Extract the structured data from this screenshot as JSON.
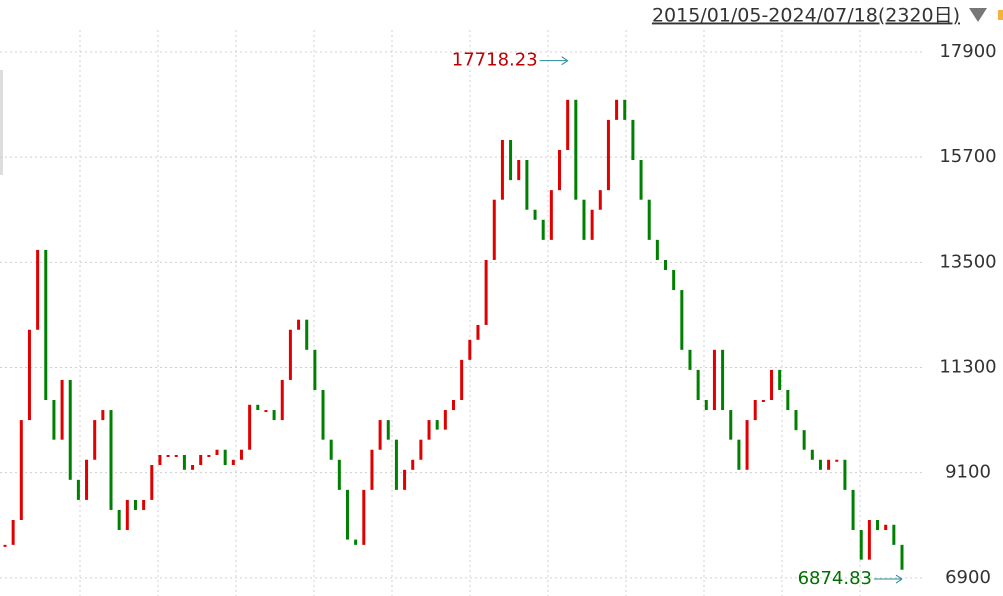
{
  "chart_data": {
    "type": "candles",
    "header": "2015/01/05-2024/07/18(2320日)",
    "values": [
      7590,
      8110,
      10200,
      12090,
      13760,
      10620,
      9790,
      11040,
      8950,
      8530,
      9370,
      10200,
      10410,
      8320,
      7900,
      8530,
      8320,
      8530,
      9260,
      9470,
      9470,
      9470,
      9160,
      9260,
      9470,
      9470,
      9580,
      9260,
      9370,
      9580,
      10520,
      10410,
      10410,
      10200,
      11040,
      12090,
      12300,
      11670,
      10830,
      9790,
      9370,
      8740,
      7700,
      7590,
      8740,
      9580,
      10200,
      9790,
      8740,
      9160,
      9370,
      9790,
      10200,
      10000,
      10410,
      10620,
      11460,
      11880,
      12190,
      13550,
      14810,
      16060,
      15220,
      15640,
      14600,
      14390,
      13970,
      15010,
      15850,
      16900,
      14810,
      13970,
      14600,
      15010,
      16480,
      16900,
      16480,
      15640,
      14810,
      13970,
      13550,
      13340,
      12920,
      11670,
      11250,
      10620,
      10410,
      11670,
      10410,
      9790,
      9160,
      10200,
      10620,
      10620,
      11250,
      10830,
      10410,
      9990,
      9580,
      9370,
      9160,
      9370,
      9370,
      8740,
      7900,
      7280,
      8110,
      7900,
      8010,
      7590,
      7070
    ],
    "up_color": "#e00000",
    "down_color": "#008000",
    "annotations": [
      {
        "text": "17718.23",
        "value": 17718.23,
        "color": "#c00000"
      },
      {
        "text": "6874.83",
        "value": 6874.83,
        "color": "#007000"
      }
    ],
    "ylim": [
      6520,
      18360
    ],
    "yticks": [
      6900,
      9100,
      11300,
      13500,
      15700,
      17900
    ],
    "grid": true
  }
}
